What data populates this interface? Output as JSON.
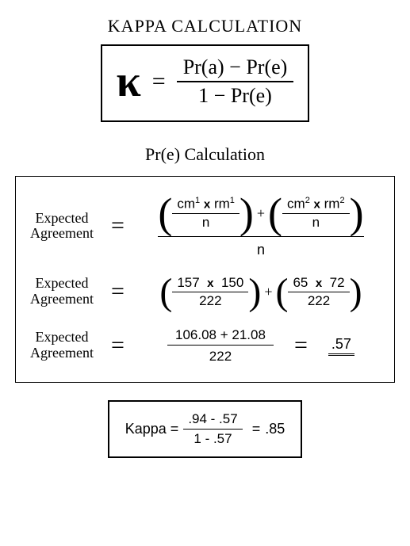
{
  "title_main": "KAPPA CALCULATION",
  "kappa_formula": {
    "symbol": "κ",
    "eq": "=",
    "numerator": "Pr(a) − Pr(e)",
    "denominator": "1 − Pr(e)"
  },
  "title_pre": "Pr(e) Calculation",
  "expected_label_l1": "Expected",
  "expected_label_l2": "Agreement",
  "row1": {
    "term1": {
      "a": "cm",
      "a_sup": "1",
      "b": "rm",
      "b_sup": "1",
      "denom": "n"
    },
    "term2": {
      "a": "cm",
      "a_sup": "2",
      "b": "rm",
      "b_sup": "2",
      "denom": "n"
    },
    "outer_denom": "n"
  },
  "row2": {
    "term1": {
      "a": "157",
      "b": "150",
      "denom": "222"
    },
    "term2": {
      "a": "65",
      "b": "72",
      "denom": "222"
    }
  },
  "row3": {
    "numerator": "106.08  +  21.08",
    "denom": "222",
    "result": ".57"
  },
  "final": {
    "label": "Kappa =",
    "numerator": ".94 - .57",
    "denominator": "1 - .57",
    "eq": "=",
    "result": ".85"
  },
  "glyphs": {
    "times": "x",
    "plus": "+",
    "eq": "="
  }
}
